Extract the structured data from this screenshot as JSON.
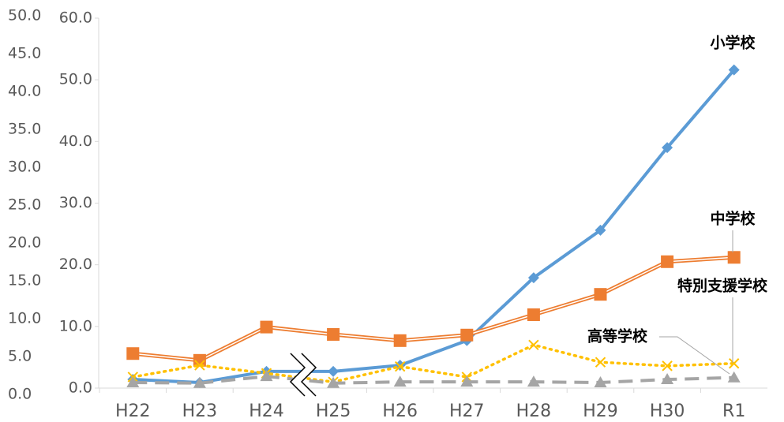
{
  "chart_data": {
    "type": "line",
    "categories": [
      "H22",
      "H23",
      "H24",
      "H25",
      "H26",
      "H27",
      "H28",
      "H29",
      "H30",
      "R1"
    ],
    "ylim": [
      0,
      60
    ],
    "yticks": [
      {
        "value": 0,
        "label": "0.0"
      },
      {
        "value": 10,
        "label": "10.0"
      },
      {
        "value": 20,
        "label": "20.0"
      },
      {
        "value": 30,
        "label": "30.0"
      },
      {
        "value": 40,
        "label": "40.0"
      },
      {
        "value": 50,
        "label": "50.0"
      },
      {
        "value": 60,
        "label": "60.0"
      }
    ],
    "y2lim": [
      0,
      50
    ],
    "y2ticks": [
      {
        "value": 0,
        "label": "0.0"
      },
      {
        "value": 5,
        "label": "5.0"
      },
      {
        "value": 10,
        "label": "10.0"
      },
      {
        "value": 15,
        "label": "15.0"
      },
      {
        "value": 20,
        "label": "20.0"
      },
      {
        "value": 25,
        "label": "25.0"
      },
      {
        "value": 30,
        "label": "30.0"
      },
      {
        "value": 35,
        "label": "35.0"
      },
      {
        "value": 40,
        "label": "40.0"
      },
      {
        "value": 45,
        "label": "45.0"
      },
      {
        "value": 50,
        "label": "50.0"
      }
    ],
    "series": [
      {
        "name": "小学校",
        "color": "#5b9bd5",
        "values": [
          1.4,
          0.9,
          2.7,
          2.7,
          3.7,
          7.7,
          17.9,
          25.6,
          39.0,
          51.6
        ]
      },
      {
        "name": "中学校",
        "color": "#ed7d31",
        "values": [
          5.6,
          4.5,
          9.9,
          8.7,
          7.7,
          8.6,
          11.9,
          15.2,
          20.5,
          21.2
        ]
      },
      {
        "name": "高等学校",
        "color": "#ffc000",
        "values": [
          1.8,
          3.7,
          2.4,
          1.0,
          3.5,
          1.8,
          7.0,
          4.2,
          3.6,
          4.0
        ]
      },
      {
        "name": "特別支援学校",
        "color": "#a5a5a5",
        "values": [
          0.9,
          0.8,
          1.9,
          0.8,
          1.0,
          1.0,
          1.0,
          0.9,
          1.4,
          1.7
        ]
      }
    ]
  }
}
